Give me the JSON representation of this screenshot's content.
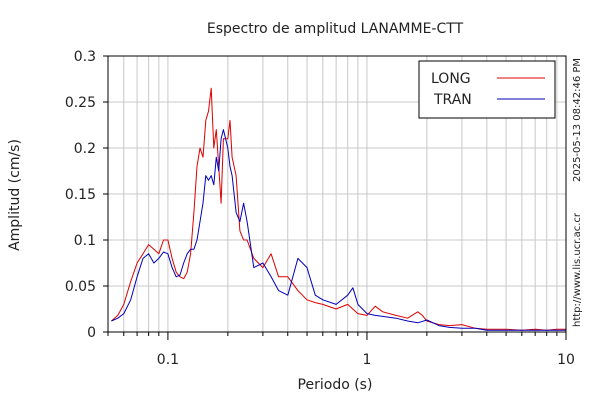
{
  "chart_data": {
    "type": "line",
    "title": "Espectro de amplitud LANAMME-CTT",
    "xlabel": "Periodo (s)",
    "ylabel": "Amplitud (cm/s)",
    "xscale": "log",
    "xlim": [
      0.05,
      10
    ],
    "ylim": [
      0,
      0.3
    ],
    "xticks": [
      {
        "value": 0.1,
        "label": "0.1"
      },
      {
        "value": 1,
        "label": "1"
      },
      {
        "value": 10,
        "label": "10"
      }
    ],
    "yticks": [
      {
        "value": 0,
        "label": "0"
      },
      {
        "value": 0.05,
        "label": "0.05"
      },
      {
        "value": 0.1,
        "label": "0.1"
      },
      {
        "value": 0.15,
        "label": "0.15"
      },
      {
        "value": 0.2,
        "label": "0.2"
      },
      {
        "value": 0.25,
        "label": "0.25"
      },
      {
        "value": 0.3,
        "label": "0.3"
      }
    ],
    "grid": true,
    "legend_position": "top-right",
    "side_text_top": "2025-05-13 08:42:46 PM",
    "side_text_bottom": "http://www.lis.ucr.ac.cr",
    "series": [
      {
        "name": "LONG",
        "color": "#dd0000",
        "x": [
          0.052,
          0.056,
          0.06,
          0.065,
          0.07,
          0.075,
          0.08,
          0.085,
          0.09,
          0.095,
          0.1,
          0.105,
          0.11,
          0.115,
          0.12,
          0.125,
          0.13,
          0.135,
          0.14,
          0.145,
          0.15,
          0.155,
          0.16,
          0.165,
          0.17,
          0.175,
          0.18,
          0.185,
          0.19,
          0.2,
          0.205,
          0.21,
          0.22,
          0.23,
          0.24,
          0.25,
          0.27,
          0.3,
          0.33,
          0.36,
          0.4,
          0.45,
          0.5,
          0.55,
          0.6,
          0.7,
          0.8,
          0.9,
          1.0,
          1.1,
          1.2,
          1.4,
          1.6,
          1.8,
          1.9,
          2.0,
          2.3,
          2.6,
          3.0,
          3.5,
          4.0,
          5.0,
          6.0,
          7.0,
          8.0,
          9.0,
          10.0
        ],
        "y": [
          0.012,
          0.018,
          0.03,
          0.055,
          0.075,
          0.085,
          0.095,
          0.09,
          0.085,
          0.1,
          0.1,
          0.08,
          0.065,
          0.06,
          0.058,
          0.065,
          0.085,
          0.13,
          0.18,
          0.2,
          0.19,
          0.23,
          0.24,
          0.265,
          0.2,
          0.22,
          0.18,
          0.14,
          0.21,
          0.21,
          0.23,
          0.19,
          0.17,
          0.11,
          0.1,
          0.1,
          0.08,
          0.07,
          0.085,
          0.06,
          0.06,
          0.045,
          0.035,
          0.032,
          0.03,
          0.025,
          0.03,
          0.02,
          0.018,
          0.028,
          0.022,
          0.018,
          0.015,
          0.022,
          0.018,
          0.012,
          0.008,
          0.007,
          0.008,
          0.004,
          0.003,
          0.003,
          0.002,
          0.003,
          0.002,
          0.003,
          0.003
        ]
      },
      {
        "name": "TRAN",
        "color": "#0000bb",
        "x": [
          0.052,
          0.056,
          0.06,
          0.065,
          0.07,
          0.075,
          0.08,
          0.085,
          0.09,
          0.095,
          0.1,
          0.105,
          0.11,
          0.115,
          0.12,
          0.125,
          0.13,
          0.135,
          0.14,
          0.145,
          0.15,
          0.155,
          0.16,
          0.165,
          0.17,
          0.175,
          0.18,
          0.185,
          0.19,
          0.2,
          0.205,
          0.21,
          0.22,
          0.23,
          0.24,
          0.25,
          0.27,
          0.3,
          0.33,
          0.36,
          0.4,
          0.45,
          0.5,
          0.55,
          0.6,
          0.7,
          0.8,
          0.85,
          0.9,
          1.0,
          1.1,
          1.2,
          1.4,
          1.6,
          1.8,
          2.0,
          2.3,
          2.6,
          3.0,
          3.5,
          4.0,
          5.0,
          6.0,
          7.0,
          8.0,
          9.0,
          10.0
        ],
        "y": [
          0.012,
          0.015,
          0.02,
          0.035,
          0.06,
          0.08,
          0.085,
          0.075,
          0.08,
          0.087,
          0.085,
          0.07,
          0.06,
          0.062,
          0.075,
          0.085,
          0.09,
          0.09,
          0.1,
          0.12,
          0.14,
          0.17,
          0.165,
          0.17,
          0.16,
          0.19,
          0.175,
          0.21,
          0.22,
          0.2,
          0.18,
          0.17,
          0.13,
          0.12,
          0.14,
          0.12,
          0.07,
          0.075,
          0.06,
          0.045,
          0.04,
          0.08,
          0.07,
          0.04,
          0.035,
          0.03,
          0.04,
          0.048,
          0.03,
          0.02,
          0.018,
          0.017,
          0.015,
          0.012,
          0.01,
          0.013,
          0.007,
          0.005,
          0.004,
          0.004,
          0.002,
          0.002,
          0.002,
          0.002,
          0.002,
          0.002,
          0.002
        ]
      }
    ]
  }
}
